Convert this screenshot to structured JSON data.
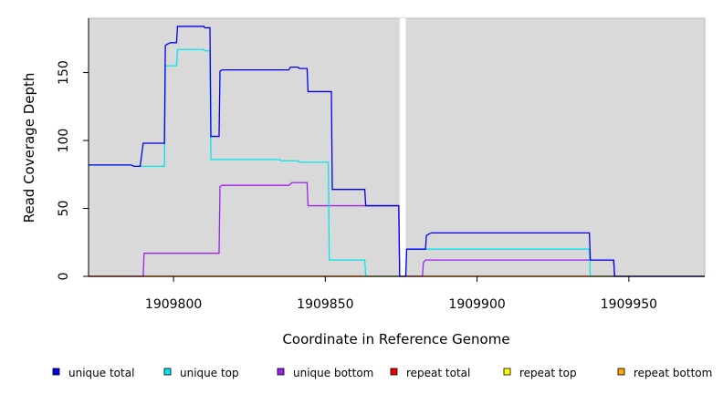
{
  "chart_data": {
    "type": "line",
    "subtype": "step",
    "title": "",
    "xlabel": "Coordinate in Reference Genome",
    "ylabel": "Read Coverage Depth",
    "xlim": [
      1909772,
      1909975
    ],
    "ylim": [
      0,
      190
    ],
    "x_ticks": [
      1909800,
      1909850,
      1909900,
      1909950
    ],
    "y_ticks": [
      0,
      50,
      100,
      150
    ],
    "gap_region": [
      1909874.5,
      1909876.5
    ],
    "series": [
      {
        "name": "unique total",
        "color": "#0000ee",
        "points": [
          [
            1909772,
            82
          ],
          [
            1909786,
            82
          ],
          [
            1909787,
            81
          ],
          [
            1909789,
            81
          ],
          [
            1909790,
            98
          ],
          [
            1909797,
            98
          ],
          [
            1909797.3,
            170
          ],
          [
            1909798,
            171
          ],
          [
            1909799,
            172
          ],
          [
            1909801,
            172
          ],
          [
            1909801.3,
            184
          ],
          [
            1909810,
            184
          ],
          [
            1909810.3,
            183
          ],
          [
            1909812,
            183
          ],
          [
            1909812.3,
            103
          ],
          [
            1909815,
            103
          ],
          [
            1909815.3,
            151
          ],
          [
            1909816,
            152
          ],
          [
            1909830,
            152
          ],
          [
            1909835,
            152
          ],
          [
            1909835.5,
            152
          ],
          [
            1909838,
            152
          ],
          [
            1909838.5,
            154
          ],
          [
            1909841,
            154
          ],
          [
            1909841.5,
            153
          ],
          [
            1909844,
            153
          ],
          [
            1909844.3,
            136
          ],
          [
            1909852,
            136
          ],
          [
            1909852.3,
            64
          ],
          [
            1909863,
            64
          ],
          [
            1909863.3,
            52
          ],
          [
            1909874.2,
            52
          ],
          [
            1909874.5,
            0
          ],
          [
            1909876.5,
            0
          ],
          [
            1909876.8,
            20
          ],
          [
            1909883,
            20
          ],
          [
            1909883.3,
            30
          ],
          [
            1909884,
            31
          ],
          [
            1909885,
            32
          ],
          [
            1909937,
            32
          ],
          [
            1909937.3,
            12
          ],
          [
            1909945,
            12
          ],
          [
            1909945.3,
            0
          ],
          [
            1909975,
            0
          ]
        ]
      },
      {
        "name": "unique top",
        "color": "#00e5ee",
        "points": [
          [
            1909772,
            82
          ],
          [
            1909786,
            82
          ],
          [
            1909787,
            81
          ],
          [
            1909795,
            81
          ],
          [
            1909797,
            81
          ],
          [
            1909797.3,
            155
          ],
          [
            1909801,
            155
          ],
          [
            1909801.3,
            167
          ],
          [
            1909810,
            167
          ],
          [
            1909810.3,
            166
          ],
          [
            1909812,
            166
          ],
          [
            1909812.3,
            86
          ],
          [
            1909835,
            86
          ],
          [
            1909835.5,
            85
          ],
          [
            1909841,
            85
          ],
          [
            1909841.5,
            84
          ],
          [
            1909851,
            84
          ],
          [
            1909851.3,
            12
          ],
          [
            1909863,
            12
          ],
          [
            1909863.3,
            0
          ],
          [
            1909876.5,
            0
          ],
          [
            1909876.8,
            20
          ],
          [
            1909937,
            20
          ],
          [
            1909937.3,
            0
          ],
          [
            1909975,
            0
          ]
        ]
      },
      {
        "name": "unique bottom",
        "color": "#a020f0",
        "points": [
          [
            1909772,
            0
          ],
          [
            1909790,
            0
          ],
          [
            1909790.3,
            17
          ],
          [
            1909815,
            17
          ],
          [
            1909815.3,
            66
          ],
          [
            1909816,
            67
          ],
          [
            1909838,
            67
          ],
          [
            1909838.5,
            68
          ],
          [
            1909839,
            69
          ],
          [
            1909844,
            69
          ],
          [
            1909844.3,
            52
          ],
          [
            1909874.2,
            52
          ],
          [
            1909874.5,
            0
          ],
          [
            1909882,
            0
          ],
          [
            1909882.3,
            10
          ],
          [
            1909883,
            12
          ],
          [
            1909945,
            12
          ],
          [
            1909945.3,
            0
          ],
          [
            1909975,
            0
          ]
        ]
      },
      {
        "name": "repeat total",
        "color": "#ee0000",
        "points": [
          [
            1909772,
            0
          ],
          [
            1909975,
            0
          ]
        ]
      },
      {
        "name": "repeat top",
        "color": "#ffff00",
        "points": [
          [
            1909772,
            0
          ],
          [
            1909975,
            0
          ]
        ]
      },
      {
        "name": "repeat bottom",
        "color": "#ffa500",
        "points": [
          [
            1909772,
            0
          ],
          [
            1909975,
            0
          ]
        ]
      }
    ],
    "legend": {
      "placement": "bottom",
      "items": [
        {
          "label": "unique total",
          "color": "#0000ee"
        },
        {
          "label": "unique top",
          "color": "#00e5ee"
        },
        {
          "label": "unique bottom",
          "color": "#a020f0"
        },
        {
          "label": "repeat total",
          "color": "#ee0000"
        },
        {
          "label": "repeat top",
          "color": "#ffff00"
        },
        {
          "label": "repeat bottom",
          "color": "#ffa500"
        }
      ]
    },
    "panel_background": "#d9d9d9",
    "gap_color": "#ffffff"
  }
}
